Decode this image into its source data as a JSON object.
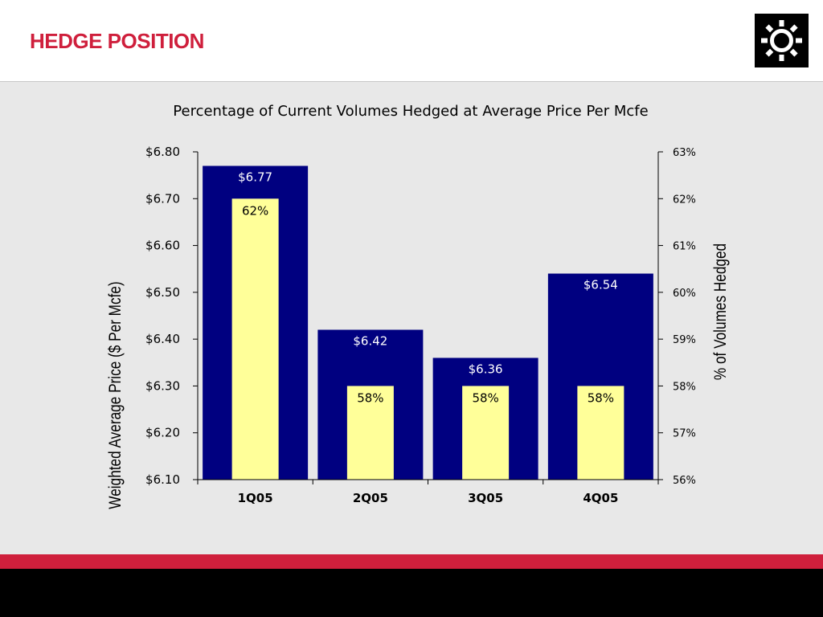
{
  "page": {
    "title": "HEDGE POSITION",
    "logo_icon": "sun-gear-icon",
    "colors": {
      "title": "#cf1f3c",
      "accent_band": "#cf1f3c",
      "footer": "#000000",
      "background": "#e8e8e8"
    }
  },
  "chart_data": {
    "type": "bar",
    "title": "Percentage of Current Volumes Hedged at Average Price Per Mcfe",
    "categories": [
      "1Q05",
      "2Q05",
      "3Q05",
      "4Q05"
    ],
    "series": [
      {
        "axis": "left",
        "color": "#000080",
        "values": [
          6.77,
          6.42,
          6.36,
          6.54
        ],
        "labels": [
          "$6.77",
          "$6.42",
          "$6.36",
          "$6.54"
        ]
      },
      {
        "axis": "right",
        "color": "#ffff99",
        "values": [
          62,
          58,
          58,
          58
        ],
        "labels": [
          "62%",
          "58%",
          "58%",
          "58%"
        ]
      }
    ],
    "ylabel": "Weighted Average Price ($ Per Mcfe)",
    "y2label": "% of Volumes Hedged",
    "ylim": [
      6.1,
      6.8
    ],
    "y2lim": [
      56,
      63
    ],
    "yticks": [
      "$6.10",
      "$6.20",
      "$6.30",
      "$6.40",
      "$6.50",
      "$6.60",
      "$6.70",
      "$6.80"
    ],
    "y2ticks": [
      "56%",
      "57%",
      "58%",
      "59%",
      "60%",
      "61%",
      "62%",
      "63%"
    ],
    "grid": false,
    "legend": "none"
  }
}
